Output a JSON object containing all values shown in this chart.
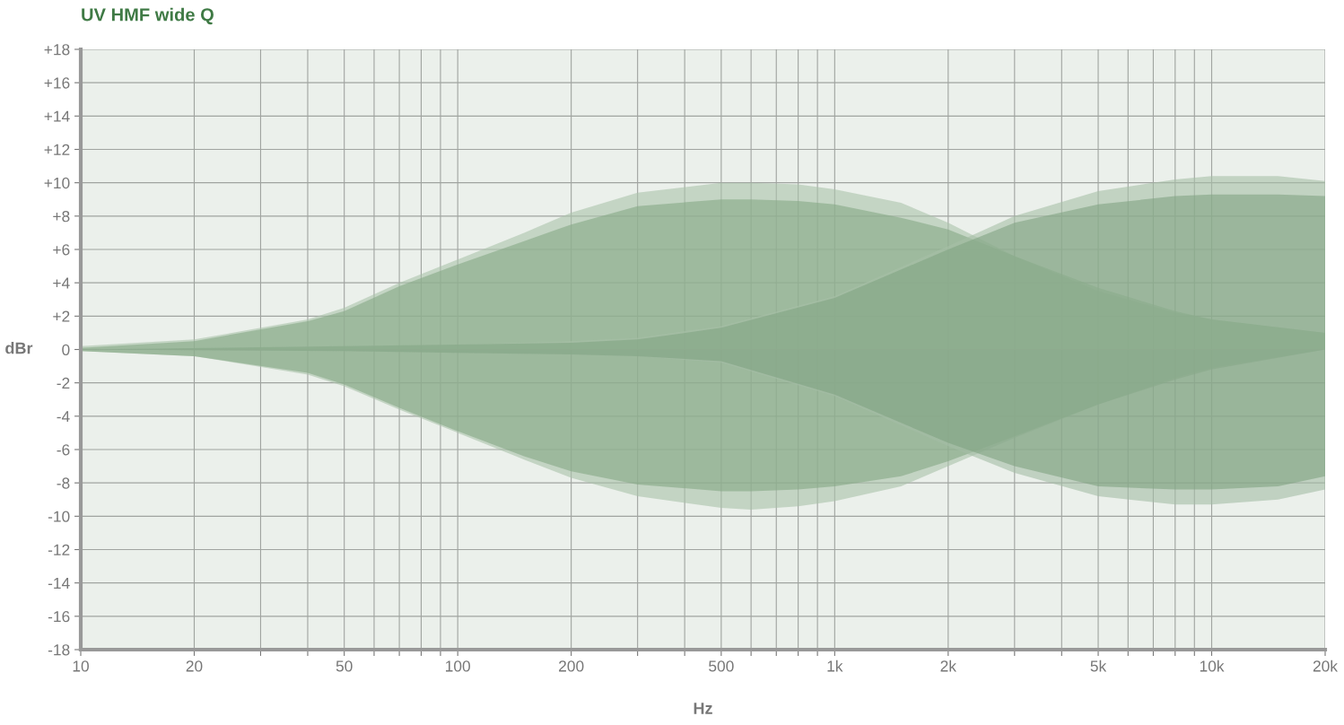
{
  "chart_data": {
    "type": "area",
    "title": "UV HMF wide Q",
    "xlabel": "Hz",
    "ylabel": "dBr",
    "log": "x",
    "grid": true,
    "legend": false,
    "xlim": [
      10,
      20000
    ],
    "ylim": [
      -18,
      18
    ],
    "xticks": [
      10,
      20,
      {
        "value": 30,
        "label": null
      },
      {
        "value": 40,
        "label": null
      },
      50,
      {
        "value": 60,
        "label": null
      },
      {
        "value": 70,
        "label": null
      },
      {
        "value": 80,
        "label": null
      },
      {
        "value": 90,
        "label": null
      },
      100,
      200,
      {
        "value": 300,
        "label": null
      },
      {
        "value": 400,
        "label": null
      },
      500,
      {
        "value": 600,
        "label": null
      },
      {
        "value": 700,
        "label": null
      },
      {
        "value": 800,
        "label": null
      },
      {
        "value": 900,
        "label": null
      },
      {
        "value": 1000,
        "label": "1k"
      },
      {
        "value": 2000,
        "label": "2k"
      },
      {
        "value": 3000,
        "label": null
      },
      {
        "value": 4000,
        "label": null
      },
      {
        "value": 5000,
        "label": "5k"
      },
      {
        "value": 6000,
        "label": null
      },
      {
        "value": 7000,
        "label": null
      },
      {
        "value": 8000,
        "label": null
      },
      {
        "value": 9000,
        "label": null
      },
      {
        "value": 10000,
        "label": "10k"
      },
      {
        "value": 20000,
        "label": "20k"
      }
    ],
    "yticks": [
      -18,
      -16,
      -14,
      -12,
      -10,
      -8,
      -6,
      -4,
      -2,
      0,
      {
        "value": 2,
        "label": "+2"
      },
      {
        "value": 4,
        "label": "+4"
      },
      {
        "value": 6,
        "label": "+6"
      },
      {
        "value": 8,
        "label": "+8"
      },
      {
        "value": 10,
        "label": "+10"
      },
      {
        "value": 12,
        "label": "+12"
      },
      {
        "value": 14,
        "label": "+14"
      },
      {
        "value": 16,
        "label": "+16"
      },
      {
        "value": 18,
        "label": "+18"
      }
    ],
    "series": [
      {
        "color": "#aac3aa",
        "x": [
          10,
          20,
          40,
          50,
          70,
          100,
          150,
          200,
          300,
          500,
          600,
          800,
          1000,
          1500,
          2000,
          3000,
          5000,
          8000,
          10000,
          20000
        ],
        "values": [
          0.2,
          0.6,
          1.8,
          2.5,
          4,
          5.4,
          7,
          8.2,
          9.4,
          10,
          10,
          9.9,
          9.6,
          8.8,
          7.6,
          5.6,
          3.5,
          2.2,
          1.8,
          1.0
        ]
      },
      {
        "color": "#85a886",
        "x": [
          10,
          20,
          40,
          50,
          70,
          100,
          150,
          200,
          300,
          500,
          600,
          800,
          1000,
          1500,
          2000,
          3000,
          5000,
          8000,
          10000,
          20000
        ],
        "values": [
          0.1,
          0.5,
          1.7,
          2.3,
          3.8,
          5.1,
          6.5,
          7.5,
          8.6,
          9.0,
          9.0,
          8.9,
          8.7,
          7.9,
          7.2,
          5.6,
          3.7,
          2.3,
          1.8,
          1.0
        ]
      },
      {
        "color": "#a8c1a9",
        "x": [
          10,
          20,
          40,
          50,
          70,
          100,
          150,
          200,
          300,
          500,
          600,
          800,
          1000,
          1500,
          2000,
          3000,
          5000,
          8000,
          10000,
          20000
        ],
        "values": [
          -0.1,
          -0.4,
          -1.5,
          -2.2,
          -3.6,
          -5,
          -6.6,
          -7.7,
          -8.8,
          -9.5,
          -9.6,
          -9.4,
          -9.1,
          -8.2,
          -7,
          -5.3,
          -3.3,
          -1.7,
          -1.1,
          0
        ]
      },
      {
        "color": "#83a684",
        "x": [
          10,
          20,
          40,
          50,
          70,
          100,
          150,
          200,
          300,
          500,
          600,
          800,
          1000,
          1500,
          2000,
          3000,
          5000,
          8000,
          10000,
          20000
        ],
        "values": [
          -0.1,
          -0.4,
          -1.4,
          -2.1,
          -3.5,
          -4.9,
          -6.4,
          -7.3,
          -8.1,
          -8.5,
          -8.5,
          -8.4,
          -8.2,
          -7.6,
          -6.7,
          -5.2,
          -3.3,
          -1.8,
          -1.2,
          0
        ]
      },
      {
        "color": "#a6bfa6",
        "x": [
          10,
          50,
          100,
          200,
          300,
          500,
          1000,
          2000,
          3000,
          5000,
          8000,
          10000,
          15000,
          20000
        ],
        "values": [
          0,
          0.2,
          0.3,
          0.5,
          0.7,
          1.4,
          3.2,
          6.2,
          8.0,
          9.5,
          10.2,
          10.4,
          10.4,
          10.1
        ]
      },
      {
        "color": "#81a482",
        "x": [
          10,
          50,
          100,
          200,
          300,
          500,
          1000,
          2000,
          3000,
          5000,
          8000,
          10000,
          15000,
          20000
        ],
        "values": [
          0,
          0.2,
          0.3,
          0.4,
          0.6,
          1.3,
          3.1,
          6.0,
          7.6,
          8.7,
          9.2,
          9.3,
          9.3,
          9.2
        ]
      },
      {
        "color": "#a4bda5",
        "x": [
          10,
          50,
          100,
          200,
          300,
          500,
          1000,
          2000,
          3000,
          5000,
          8000,
          10000,
          15000,
          20000
        ],
        "values": [
          0,
          -0.1,
          -0.2,
          -0.3,
          -0.4,
          -0.8,
          -2.8,
          -5.8,
          -7.4,
          -8.8,
          -9.3,
          -9.3,
          -9.0,
          -8.4
        ]
      },
      {
        "color": "#7fa280",
        "x": [
          10,
          50,
          100,
          200,
          300,
          500,
          1000,
          2000,
          3000,
          5000,
          8000,
          10000,
          15000,
          20000
        ],
        "values": [
          0,
          -0.1,
          -0.2,
          -0.3,
          -0.4,
          -0.7,
          -2.7,
          -5.6,
          -7.0,
          -8.2,
          -8.4,
          -8.4,
          -8.2,
          -7.6
        ]
      }
    ]
  }
}
